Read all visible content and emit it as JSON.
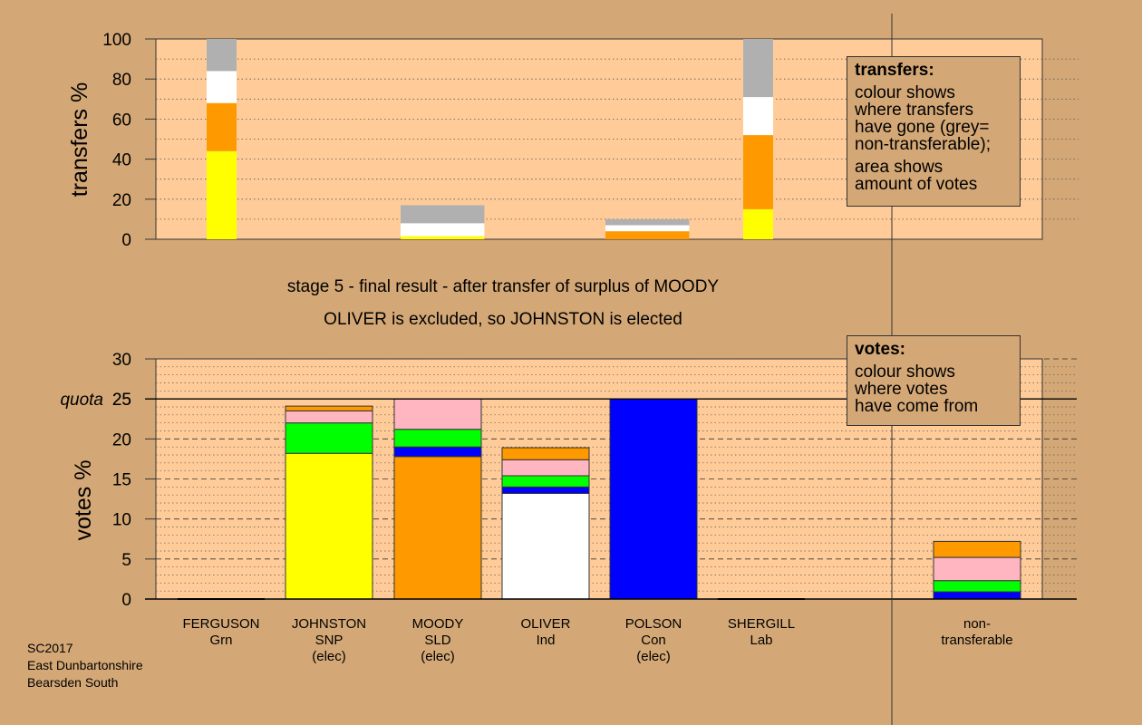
{
  "stage_title": "stage 5 - final result - after transfer of surplus of MOODY",
  "stage_subtitle": "OLIVER is excluded, so JOHNSTON is elected",
  "transfers_box": {
    "title": "transfers:",
    "line1": "colour shows\nwhere transfers\nhave gone (grey=\nnon-transferable);",
    "line2": "area shows\namount of votes"
  },
  "votes_box": {
    "title": "votes:",
    "line1": "colour shows\nwhere votes\nhave come from"
  },
  "caption": "SC2017\nEast Dunbartonshire\nBearsden South",
  "colors": {
    "background": "#d4a876",
    "plot_background": "#ffcc99",
    "yellow": "#ffff00",
    "orange": "#ff9900",
    "white": "#ffffff",
    "pink": "#ffb6c1",
    "green": "#00ff00",
    "blue": "#0000ff",
    "grey": "#b0b0b0"
  },
  "chart_data": [
    {
      "type": "bar",
      "stacked": true,
      "ylabel": "transfers %",
      "ylim": [
        0,
        100
      ],
      "yticks": [
        "0",
        "20",
        "40",
        "60",
        "80",
        "100"
      ],
      "grid": "dotted",
      "bars": [
        {
          "source": "FERGUSON",
          "width": 1.0,
          "segments": [
            {
              "color": "yellow",
              "value": 44
            },
            {
              "color": "orange",
              "value": 24
            },
            {
              "color": "white",
              "value": 16
            },
            {
              "color": "grey",
              "value": 16
            }
          ]
        },
        {
          "source": "OLIVER_TO_MOODY",
          "width": 2.8,
          "segments": [
            {
              "color": "yellow",
              "value": 1.5
            },
            {
              "color": "white",
              "value": 6.5
            },
            {
              "color": "grey",
              "value": 9
            }
          ]
        },
        {
          "source": "SHERGILL_TO_POLSON",
          "width": 2.8,
          "segments": [
            {
              "color": "orange",
              "value": 4
            },
            {
              "color": "white",
              "value": 3
            },
            {
              "color": "grey",
              "value": 3
            }
          ]
        },
        {
          "source": "MOODY",
          "width": 1.0,
          "segments": [
            {
              "color": "yellow",
              "value": 15
            },
            {
              "color": "orange",
              "value": 37
            },
            {
              "color": "white",
              "value": 19
            },
            {
              "color": "grey",
              "value": 29
            }
          ]
        }
      ]
    },
    {
      "type": "bar",
      "stacked": true,
      "ylabel": "votes %",
      "ylim": [
        0,
        30
      ],
      "yticks": [
        "0",
        "5",
        "10",
        "15",
        "20",
        "25",
        "30"
      ],
      "quota": 25,
      "quota_label": "quota",
      "categories": [
        {
          "name": "FERGUSON",
          "party": "Grn",
          "status": ""
        },
        {
          "name": "JOHNSTON",
          "party": "SNP",
          "status": "(elec)"
        },
        {
          "name": "MOODY",
          "party": "SLD",
          "status": "(elec)"
        },
        {
          "name": "OLIVER",
          "party": "Ind",
          "status": ""
        },
        {
          "name": "POLSON",
          "party": "Con",
          "status": "(elec)"
        },
        {
          "name": "SHERGILL",
          "party": "Lab",
          "status": ""
        },
        {
          "name": "non-",
          "party": "transferable",
          "status": ""
        }
      ],
      "stacks": [
        [],
        [
          {
            "color": "yellow",
            "value": 18.2
          },
          {
            "color": "green",
            "value": 3.8
          },
          {
            "color": "pink",
            "value": 1.5
          },
          {
            "color": "orange",
            "value": 0.6
          }
        ],
        [
          {
            "color": "orange",
            "value": 17.8
          },
          {
            "color": "blue",
            "value": 1.2
          },
          {
            "color": "green",
            "value": 2.2
          },
          {
            "color": "pink",
            "value": 3.8
          }
        ],
        [
          {
            "color": "white",
            "value": 13.2
          },
          {
            "color": "blue",
            "value": 0.8
          },
          {
            "color": "green",
            "value": 1.4
          },
          {
            "color": "pink",
            "value": 2.0
          },
          {
            "color": "orange",
            "value": 1.5
          }
        ],
        [
          {
            "color": "blue",
            "value": 25.0
          }
        ],
        [],
        [
          {
            "color": "blue",
            "value": 0.9
          },
          {
            "color": "green",
            "value": 1.4
          },
          {
            "color": "pink",
            "value": 2.9
          },
          {
            "color": "orange",
            "value": 2.0
          }
        ]
      ]
    }
  ]
}
